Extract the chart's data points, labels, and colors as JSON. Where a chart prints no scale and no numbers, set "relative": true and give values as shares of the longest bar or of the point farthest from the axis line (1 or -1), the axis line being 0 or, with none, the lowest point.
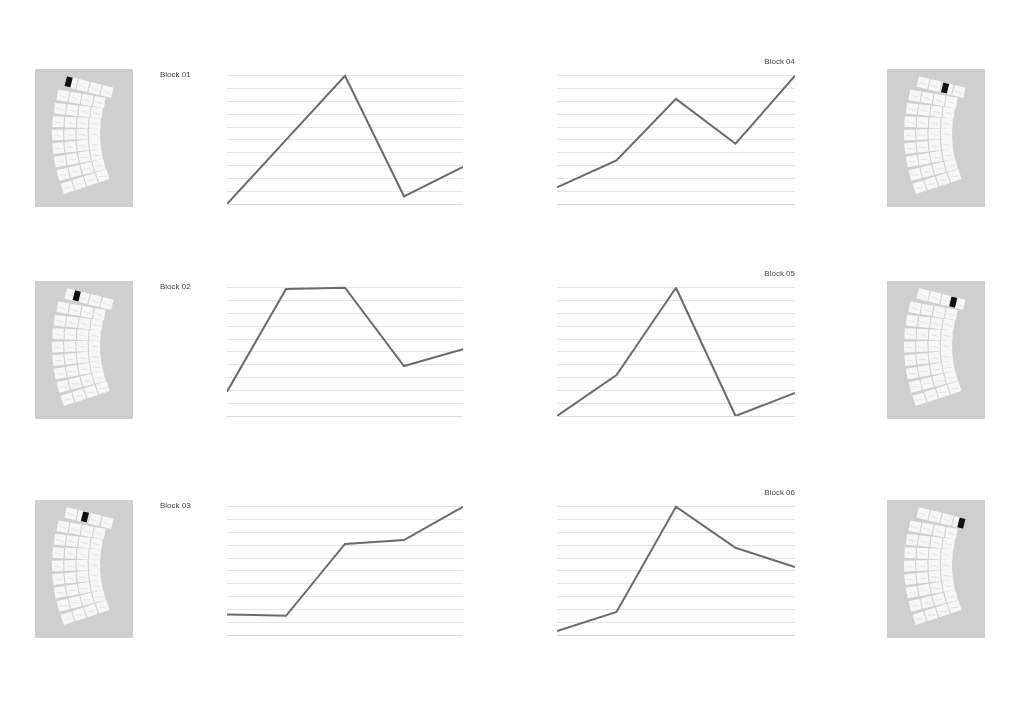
{
  "chart_data": [
    {
      "type": "line",
      "title": "Block 01",
      "categories": [
        null,
        null,
        null,
        null,
        null
      ],
      "values": [
        0,
        0.5,
        1,
        0.06,
        0.29
      ],
      "color": "#6b6b6b",
      "relative": true,
      "grid": "y",
      "tick_labels": false
    },
    {
      "type": "line",
      "title": "Block 04",
      "categories": [
        null,
        null,
        null,
        null,
        null
      ],
      "values": [
        0.13,
        0.34,
        0.82,
        0.47,
        1
      ],
      "color": "#6b6b6b",
      "relative": true,
      "grid": "y",
      "tick_labels": false
    },
    {
      "type": "line",
      "title": "Block 02",
      "categories": [
        null,
        null,
        null,
        null,
        null
      ],
      "values": [
        0.19,
        0.99,
        1,
        0.39,
        0.52
      ],
      "color": "#6b6b6b",
      "relative": true,
      "grid": "y",
      "tick_labels": false
    },
    {
      "type": "line",
      "title": "Block 05",
      "categories": [
        null,
        null,
        null,
        null,
        null
      ],
      "values": [
        0,
        0.32,
        1,
        0,
        0.18
      ],
      "color": "#6b6b6b",
      "relative": true,
      "grid": "y",
      "tick_labels": false
    },
    {
      "type": "line",
      "title": "Block 03",
      "categories": [
        null,
        null,
        null,
        null,
        null
      ],
      "values": [
        0.16,
        0.15,
        0.71,
        0.74,
        1
      ],
      "color": "#6b6b6b",
      "relative": true,
      "grid": "y",
      "tick_labels": false
    },
    {
      "type": "line",
      "title": "Block 06",
      "categories": [
        null,
        null,
        null,
        null,
        null
      ],
      "values": [
        0.03,
        0.18,
        1,
        0.68,
        0.53
      ],
      "color": "#6b6b6b",
      "relative": true,
      "grid": "y",
      "tick_labels": false
    }
  ]
}
